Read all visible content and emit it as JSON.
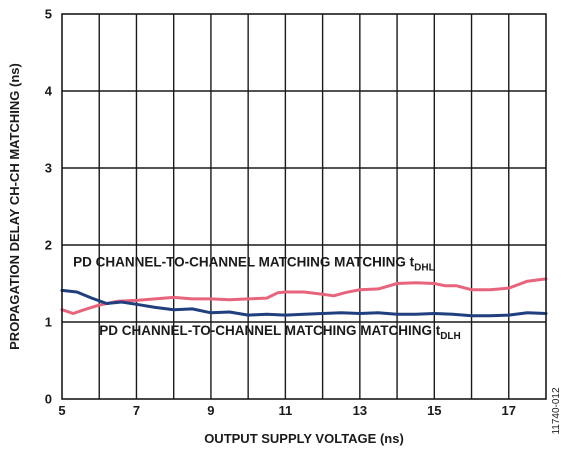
{
  "chart_data": {
    "type": "line",
    "xlabel": "OUTPUT SUPPLY VOLTAGE (ns)",
    "ylabel": "PROPAGATION DELAY CH-CH MATCHING (ns)",
    "xlim": [
      5,
      18
    ],
    "ylim": [
      0,
      5
    ],
    "xticks": [
      5,
      7,
      9,
      11,
      13,
      15,
      17
    ],
    "yticks": [
      0,
      1,
      2,
      3,
      4,
      5
    ],
    "x_minor_gridlines": [
      6,
      8,
      10,
      12,
      14,
      16
    ],
    "grid": true,
    "figure_id": "11740-012",
    "annotations": [
      {
        "text": "PD CHANNEL-TO-CHANNEL MATCHING MATCHING t",
        "subscript": "DHL",
        "series": "tDHL"
      },
      {
        "text": "PD CHANNEL-TO-CHANNEL MATCHING MATCHING t",
        "subscript": "DLH",
        "series": "tDLH"
      }
    ],
    "series": [
      {
        "key": "tDHL",
        "color": "#e8647c",
        "x": [
          5.0,
          5.3,
          5.6,
          6.0,
          6.5,
          7.0,
          7.5,
          8.0,
          8.5,
          9.0,
          9.5,
          10.0,
          10.5,
          10.8,
          11.0,
          11.5,
          12.0,
          12.3,
          12.6,
          13.0,
          13.5,
          14.0,
          14.5,
          15.0,
          15.3,
          15.6,
          16.0,
          16.5,
          17.0,
          17.5,
          18.0
        ],
        "y": [
          1.16,
          1.11,
          1.16,
          1.22,
          1.27,
          1.28,
          1.3,
          1.32,
          1.3,
          1.3,
          1.29,
          1.3,
          1.31,
          1.38,
          1.39,
          1.39,
          1.36,
          1.34,
          1.38,
          1.42,
          1.43,
          1.5,
          1.51,
          1.5,
          1.47,
          1.47,
          1.42,
          1.42,
          1.44,
          1.53,
          1.56
        ]
      },
      {
        "key": "tDLH",
        "color": "#1f3f7e",
        "x": [
          5.0,
          5.4,
          5.8,
          6.2,
          6.6,
          7.0,
          7.5,
          8.0,
          8.5,
          9.0,
          9.5,
          10.0,
          10.5,
          11.0,
          11.5,
          12.0,
          12.5,
          13.0,
          13.5,
          14.0,
          14.5,
          15.0,
          15.5,
          16.0,
          16.5,
          17.0,
          17.5,
          18.0
        ],
        "y": [
          1.41,
          1.39,
          1.31,
          1.24,
          1.26,
          1.23,
          1.19,
          1.16,
          1.17,
          1.12,
          1.13,
          1.09,
          1.1,
          1.09,
          1.1,
          1.11,
          1.12,
          1.11,
          1.12,
          1.1,
          1.1,
          1.11,
          1.1,
          1.08,
          1.08,
          1.09,
          1.12,
          1.11
        ]
      }
    ]
  }
}
